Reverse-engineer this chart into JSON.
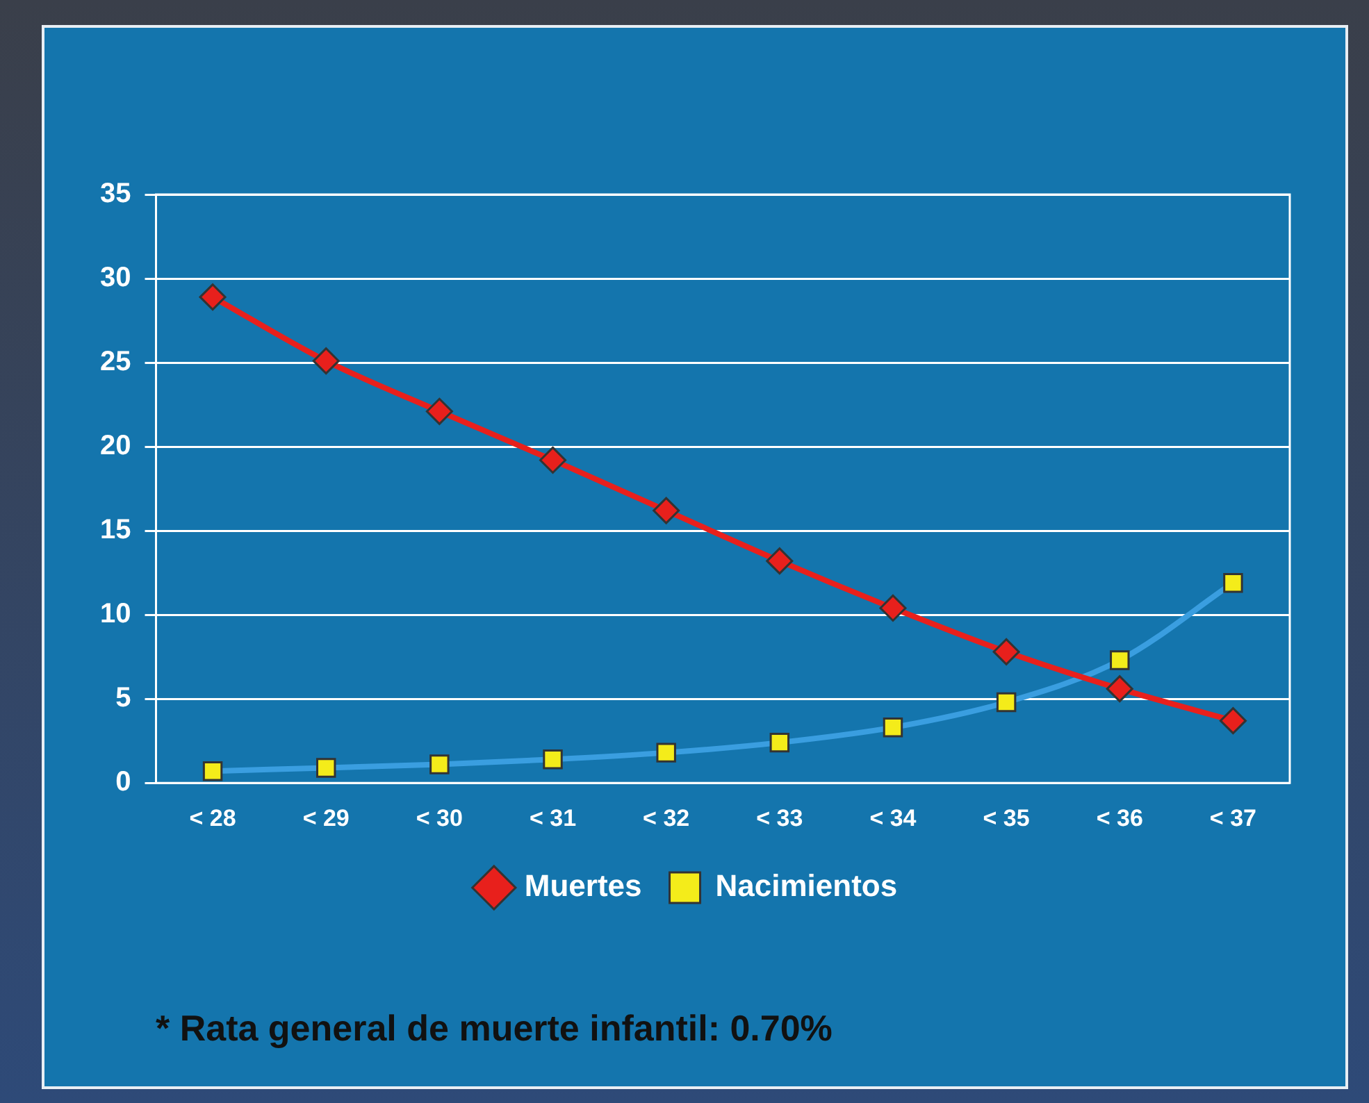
{
  "chart_data": {
    "type": "line",
    "categories": [
      "< 28",
      "< 29",
      "< 30",
      "< 31",
      "< 32",
      "< 33",
      "< 34",
      "< 35",
      "< 36",
      "< 37"
    ],
    "series": [
      {
        "name": "Muertes",
        "color": "#e8201c",
        "marker": "diamond",
        "values": [
          28.9,
          25.1,
          22.1,
          19.2,
          16.2,
          13.2,
          10.4,
          7.8,
          5.6,
          3.7
        ]
      },
      {
        "name": "Nacimientos",
        "color": "#3a9ee0",
        "marker": "square",
        "values": [
          0.7,
          0.9,
          1.1,
          1.4,
          1.8,
          2.4,
          3.3,
          4.8,
          7.3,
          11.9
        ]
      }
    ],
    "ylim": [
      0,
      35
    ],
    "yticks": [
      0,
      5,
      10,
      15,
      20,
      25,
      30,
      35
    ],
    "grid": "y",
    "legend": "bottom",
    "line_style": "solid",
    "annotations": [
      "* Rata general de muerte infantil: 0.70%"
    ]
  }
}
